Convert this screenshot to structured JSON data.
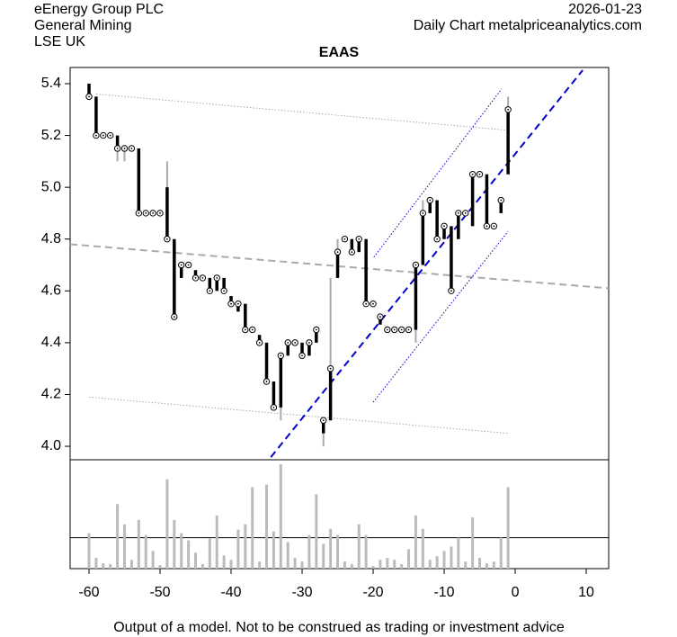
{
  "chart_data": {
    "type": "ohlc",
    "title": "EAAS",
    "header_left": [
      "eEnergy Group PLC",
      "General Mining",
      "LSE UK"
    ],
    "header_right": [
      "2026-01-23",
      "Daily Chart metalpriceanalytics.com"
    ],
    "footer": "Output of a model. Not to be construed as trading or investment advice",
    "x": [
      -60,
      -59,
      -58,
      -57,
      -56,
      -55,
      -54,
      -53,
      -52,
      -51,
      -50,
      -49,
      -48,
      -47,
      -46,
      -45,
      -44,
      -43,
      -42,
      -41,
      -40,
      -39,
      -38,
      -37,
      -36,
      -35,
      -34,
      -33,
      -32,
      -31,
      -30,
      -29,
      -28,
      -27,
      -26,
      -25,
      -24,
      -23,
      -22,
      -21,
      -20,
      -19,
      -18,
      -17,
      -16,
      -15,
      -14,
      -13,
      -12,
      -11,
      -10,
      -9,
      -8,
      -7,
      -6,
      -5,
      -4,
      -3,
      -2,
      -1
    ],
    "open": [
      5.4,
      5.35,
      5.2,
      5.2,
      5.2,
      5.15,
      5.15,
      5.15,
      4.9,
      4.9,
      4.9,
      5.0,
      4.8,
      4.65,
      4.7,
      4.68,
      4.65,
      4.65,
      4.6,
      4.65,
      4.58,
      4.52,
      4.55,
      4.45,
      4.43,
      4.4,
      4.25,
      4.15,
      4.35,
      4.4,
      4.4,
      4.35,
      4.4,
      4.05,
      4.1,
      4.65,
      4.8,
      4.8,
      4.75,
      4.8,
      4.55,
      4.47,
      4.45,
      4.45,
      4.45,
      4.45,
      4.45,
      4.7,
      4.9,
      4.95,
      4.8,
      4.85,
      4.8,
      4.9,
      4.85,
      5.05,
      5.05,
      4.85,
      4.9,
      5.05
    ],
    "high": [
      5.4,
      5.35,
      5.2,
      5.2,
      5.2,
      5.15,
      5.15,
      5.15,
      4.9,
      4.9,
      4.9,
      5.1,
      4.8,
      4.7,
      4.7,
      4.68,
      4.65,
      4.65,
      4.65,
      4.65,
      4.58,
      4.55,
      4.55,
      4.45,
      4.43,
      4.4,
      4.25,
      4.35,
      4.4,
      4.4,
      4.4,
      4.4,
      4.45,
      4.1,
      4.65,
      4.8,
      4.8,
      4.8,
      4.8,
      4.8,
      4.55,
      4.5,
      4.45,
      4.45,
      4.45,
      4.45,
      4.7,
      4.95,
      4.95,
      4.95,
      4.85,
      4.85,
      4.9,
      4.9,
      5.05,
      5.05,
      5.05,
      4.85,
      4.95,
      5.35
    ],
    "low": [
      5.35,
      5.2,
      5.2,
      5.2,
      5.1,
      5.1,
      5.15,
      4.9,
      4.9,
      4.9,
      4.9,
      4.8,
      4.5,
      4.65,
      4.7,
      4.65,
      4.65,
      4.6,
      4.6,
      4.6,
      4.55,
      4.52,
      4.45,
      4.45,
      4.4,
      4.25,
      4.15,
      4.1,
      4.35,
      4.4,
      4.35,
      4.35,
      4.4,
      4.0,
      4.1,
      4.65,
      4.8,
      4.75,
      4.75,
      4.55,
      4.55,
      4.47,
      4.45,
      4.45,
      4.45,
      4.45,
      4.4,
      4.7,
      4.9,
      4.8,
      4.8,
      4.6,
      4.8,
      4.9,
      4.85,
      5.05,
      4.85,
      4.85,
      4.9,
      5.05
    ],
    "close": [
      5.35,
      5.2,
      5.2,
      5.2,
      5.15,
      5.15,
      5.15,
      4.9,
      4.9,
      4.9,
      4.9,
      4.8,
      4.5,
      4.7,
      4.7,
      4.65,
      4.65,
      4.6,
      4.65,
      4.6,
      4.55,
      4.55,
      4.45,
      4.45,
      4.4,
      4.25,
      4.15,
      4.35,
      4.4,
      4.4,
      4.35,
      4.4,
      4.45,
      4.1,
      4.3,
      4.75,
      4.8,
      4.75,
      4.8,
      4.55,
      4.55,
      4.5,
      4.45,
      4.45,
      4.45,
      4.45,
      4.7,
      4.9,
      4.95,
      4.8,
      4.85,
      4.6,
      4.9,
      4.9,
      5.05,
      5.05,
      4.85,
      4.85,
      4.95,
      5.3
    ],
    "volume": [
      40,
      12,
      6,
      5,
      73,
      50,
      10,
      55,
      38,
      20,
      4,
      101,
      55,
      40,
      32,
      18,
      5,
      34,
      60,
      15,
      10,
      44,
      50,
      92,
      8,
      95,
      42,
      118,
      30,
      12,
      8,
      38,
      84,
      28,
      45,
      38,
      8,
      5,
      50,
      38,
      3,
      10,
      12,
      10,
      5,
      22,
      60,
      45,
      10,
      14,
      20,
      25,
      35,
      8,
      58,
      12,
      6,
      8,
      35,
      92
    ],
    "volume_line": 35,
    "vlim": [
      0,
      121
    ],
    "lines": [
      {
        "x": [
          -59,
          -1
        ],
        "y": [
          5.36,
          5.22
        ],
        "color": "#aaaaaa",
        "style": "dotted"
      },
      {
        "x": [
          -60,
          -1
        ],
        "y": [
          4.19,
          4.05
        ],
        "color": "#aaaaaa",
        "style": "dotted"
      },
      {
        "x": [
          -62.66,
          13.16
        ],
        "y": [
          4.78,
          4.61
        ],
        "color": "#aaaaaa",
        "style": "dashed"
      },
      {
        "x": [
          -34.4,
          9.5
        ],
        "y": [
          3.958,
          5.452
        ],
        "color": "#0000cc",
        "style": "dashed"
      },
      {
        "x": [
          -19.9,
          -1.9
        ],
        "y": [
          4.73,
          5.38
        ],
        "color": "#0000cc",
        "style": "dotted"
      },
      {
        "x": [
          -20,
          -1
        ],
        "y": [
          4.17,
          4.83
        ],
        "color": "#0000cc",
        "style": "dotted"
      }
    ],
    "xlim": [
      -62.66,
      13.16
    ],
    "ylim": [
      3.948,
      5.4625
    ],
    "xticks": [
      -60,
      -50,
      -40,
      -30,
      -20,
      -10,
      0,
      10
    ],
    "yticks": [
      {
        "value": 4,
        "label": "4.0"
      },
      4.2,
      4.4,
      4.6,
      4.8,
      {
        "value": 5,
        "label": "5.0"
      },
      5.2,
      5.4
    ],
    "bar_color": "#000000",
    "range_color": "#aaaaaa",
    "volume_color": "#bbbbbb"
  }
}
